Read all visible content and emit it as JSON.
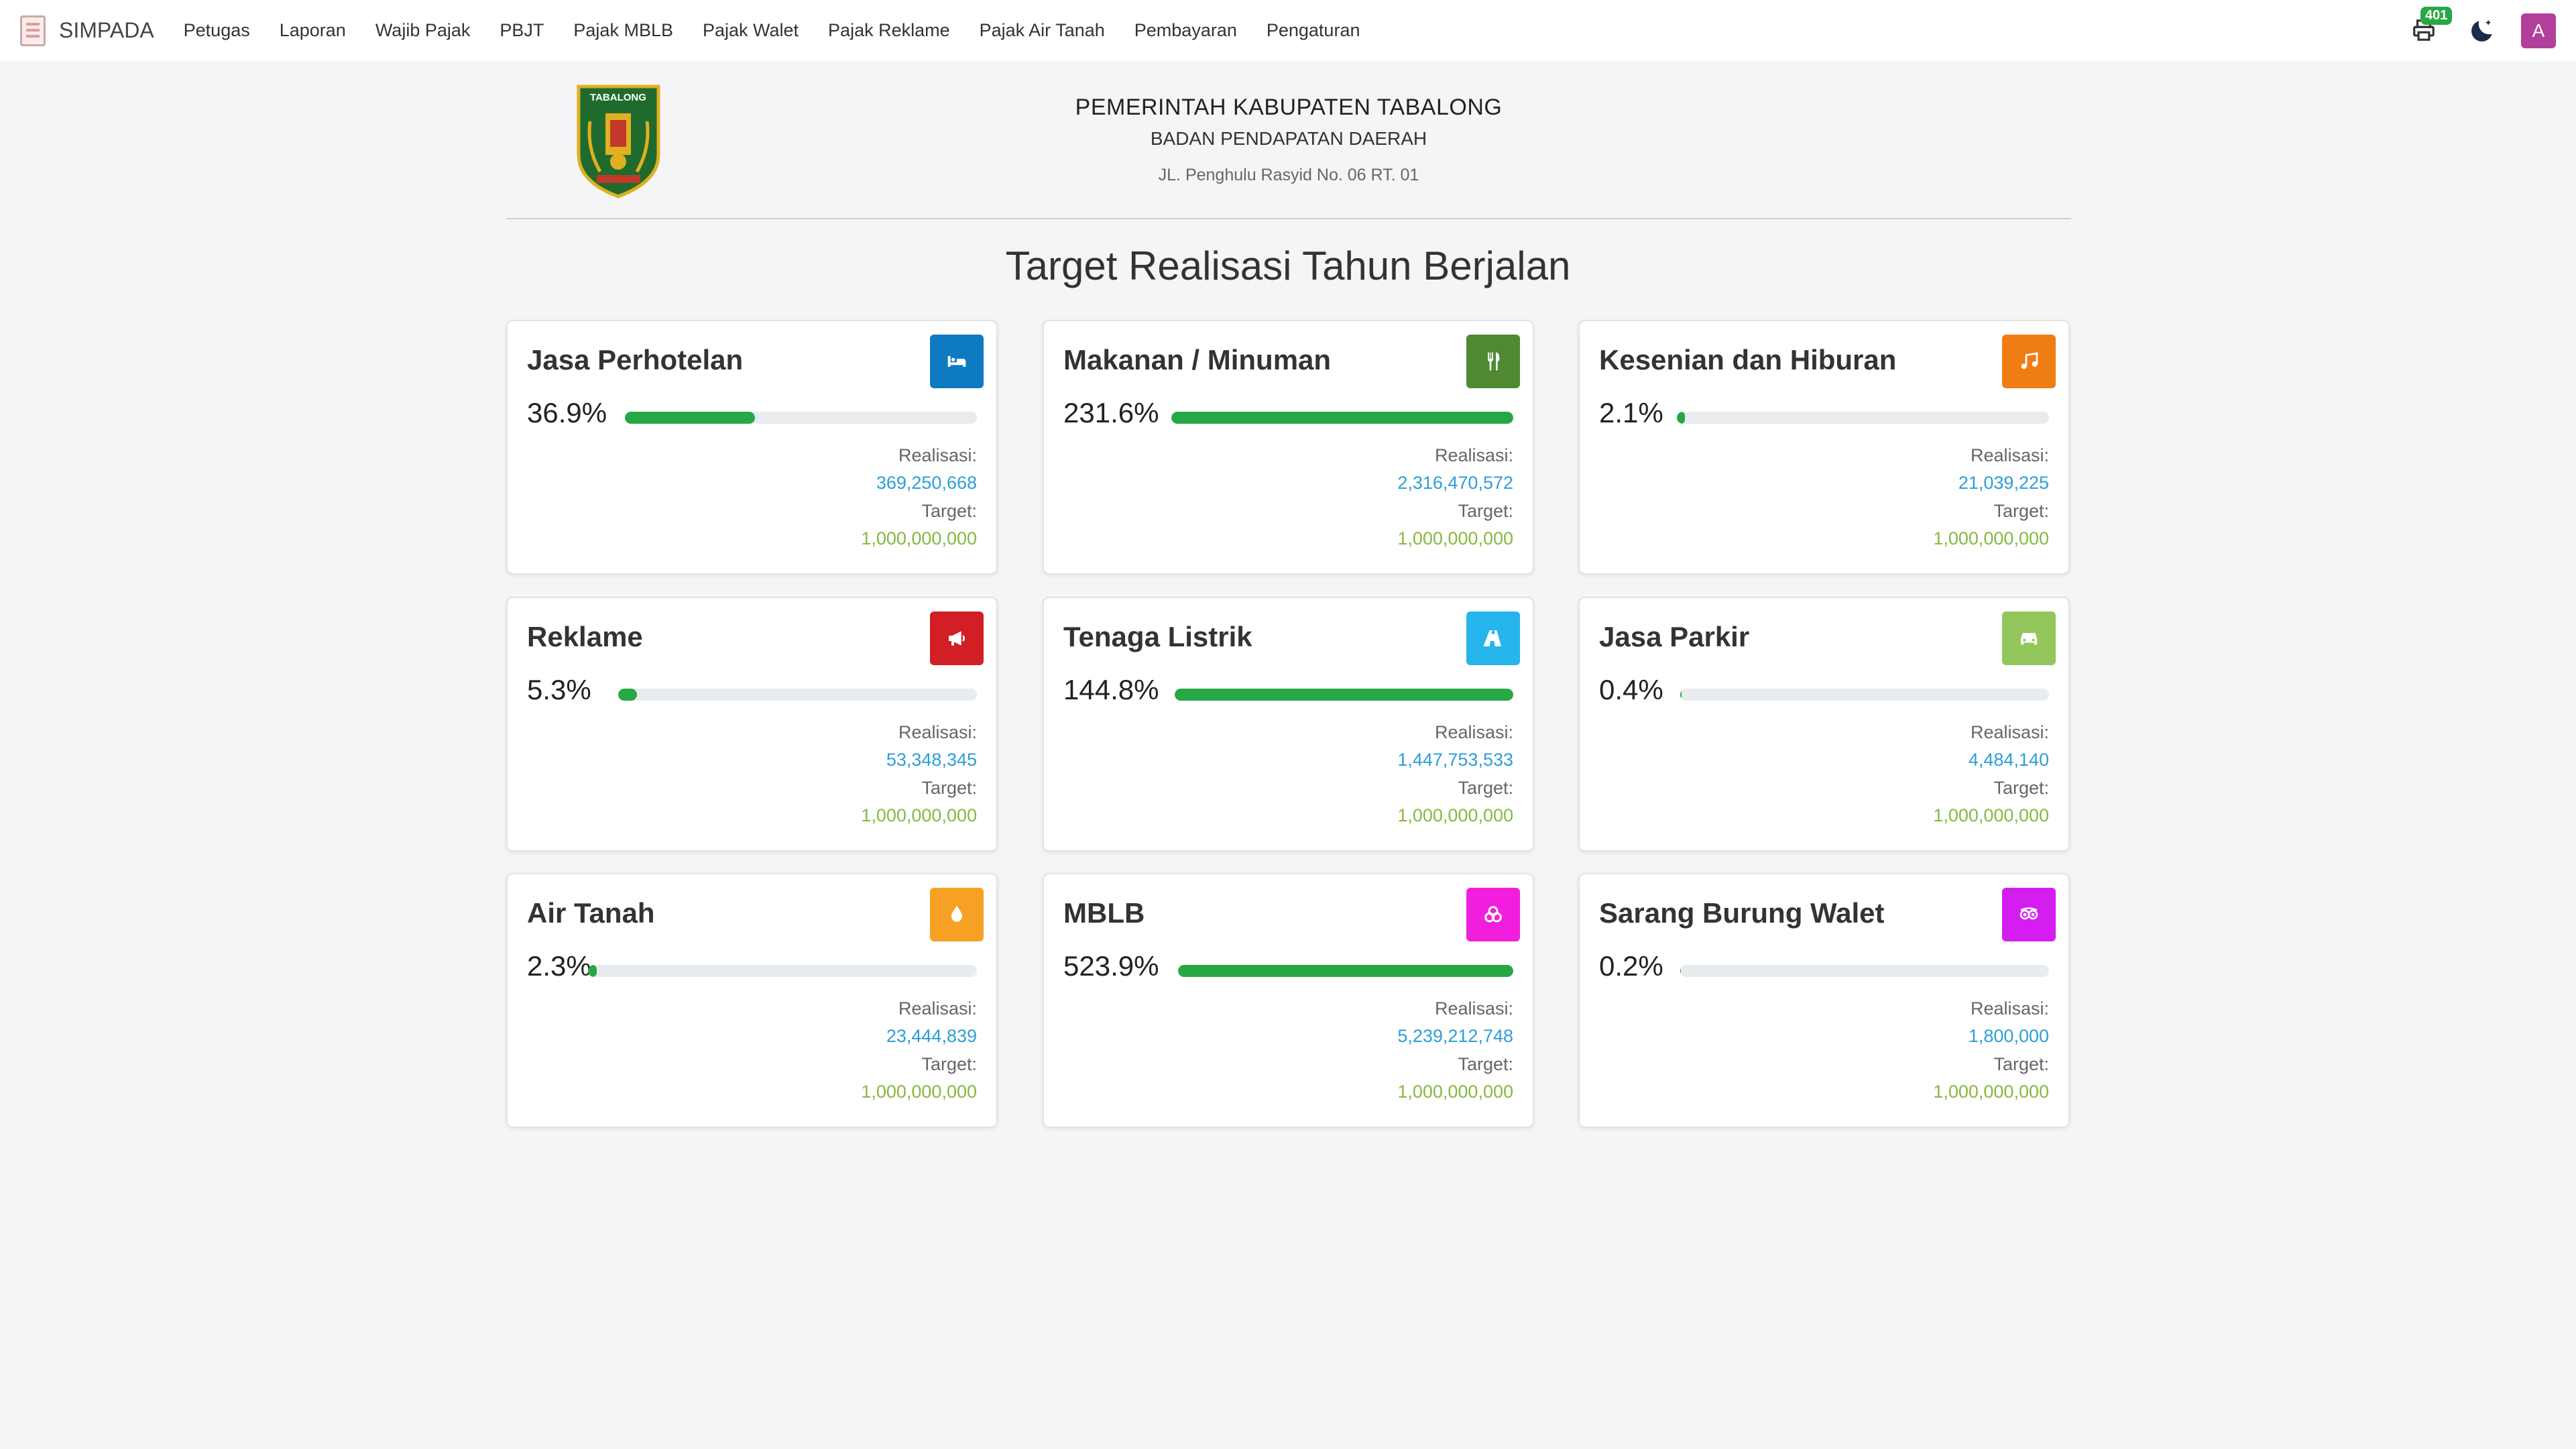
{
  "navbar": {
    "brand": "SIMPADA",
    "items": [
      "Petugas",
      "Laporan",
      "Wajib Pajak",
      "PBJT",
      "Pajak MBLB",
      "Pajak Walet",
      "Pajak Reklame",
      "Pajak Air Tanah",
      "Pembayaran",
      "Pengaturan"
    ],
    "notification_count": "401",
    "avatar_initial": "A",
    "icons": {
      "notification": "printer-icon",
      "theme": "moon-icon"
    }
  },
  "header": {
    "crest_lettering": "TABALONG",
    "government": "PEMERINTAH KABUPATEN TABALONG",
    "department": "BADAN PENDAPATAN DAERAH",
    "address": "JL. Penghulu Rasyid No. 06 RT. 01"
  },
  "page_title": "Target Realisasi Tahun Berjalan",
  "labels": {
    "realisasi": "Realisasi:",
    "target": "Target:"
  },
  "cards": [
    {
      "title": "Jasa Perhotelan",
      "percent": "36.9%",
      "progress": 0.369,
      "realisasi": "369,250,668",
      "target": "1,000,000,000",
      "icon": "bed-icon",
      "color": "#0d7ac2"
    },
    {
      "title": "Makanan / Minuman",
      "percent": "231.6%",
      "progress": 1.0,
      "realisasi": "2,316,470,572",
      "target": "1,000,000,000",
      "icon": "utensils-icon",
      "color": "#4f8a32"
    },
    {
      "title": "Kesenian dan Hiburan",
      "percent": "2.1%",
      "progress": 0.021,
      "realisasi": "21,039,225",
      "target": "1,000,000,000",
      "icon": "music-icon",
      "color": "#f07d14"
    },
    {
      "title": "Reklame",
      "percent": "5.3%",
      "progress": 0.053,
      "realisasi": "53,348,345",
      "target": "1,000,000,000",
      "icon": "megaphone-icon",
      "color": "#d21f26"
    },
    {
      "title": "Tenaga Listrik",
      "percent": "144.8%",
      "progress": 1.0,
      "realisasi": "1,447,753,533",
      "target": "1,000,000,000",
      "icon": "road-icon",
      "color": "#25b4ec"
    },
    {
      "title": "Jasa Parkir",
      "percent": "0.4%",
      "progress": 0.004,
      "realisasi": "4,484,140",
      "target": "1,000,000,000",
      "icon": "car-icon",
      "color": "#93c65b"
    },
    {
      "title": "Air Tanah",
      "percent": "2.3%",
      "progress": 0.023,
      "realisasi": "23,444,839",
      "target": "1,000,000,000",
      "icon": "droplet-icon",
      "color": "#f7a124"
    },
    {
      "title": "MBLB",
      "percent": "523.9%",
      "progress": 1.0,
      "realisasi": "5,239,212,748",
      "target": "1,000,000,000",
      "icon": "stones-icon",
      "color": "#f21ede"
    },
    {
      "title": "Sarang Burung Walet",
      "percent": "0.2%",
      "progress": 0.002,
      "realisasi": "1,800,000",
      "target": "1,000,000,000",
      "icon": "bird-eyes-icon",
      "color": "#d41ef0"
    }
  ]
}
